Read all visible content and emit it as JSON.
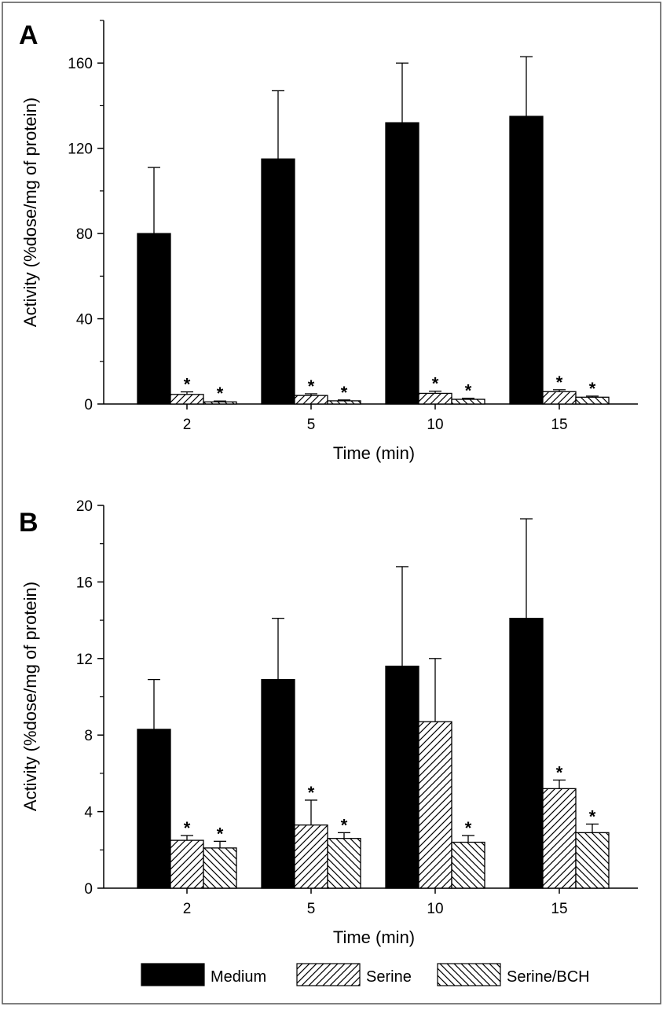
{
  "chart_data": [
    {
      "type": "bar",
      "panel_label": "A",
      "categories": [
        "2",
        "5",
        "10",
        "15"
      ],
      "xlabel": "Time (min)",
      "ylabel": "Activity (%dose/mg of protein)",
      "ylim": [
        0,
        180
      ],
      "yticks": [
        0,
        40,
        80,
        120,
        160
      ],
      "series": [
        {
          "name": "Medium",
          "values": [
            80,
            115,
            132,
            135
          ],
          "errors": [
            31,
            32,
            28,
            28
          ],
          "stars": [
            false,
            false,
            false,
            false
          ]
        },
        {
          "name": "Serine",
          "values": [
            4.5,
            4.0,
            5.0,
            5.8
          ],
          "errors": [
            1.2,
            0.8,
            1.0,
            0.9
          ],
          "stars": [
            true,
            true,
            true,
            true
          ]
        },
        {
          "name": "Serine/BCH",
          "values": [
            1.0,
            1.5,
            2.2,
            3.2
          ],
          "errors": [
            0.4,
            0.4,
            0.5,
            0.5
          ],
          "stars": [
            true,
            true,
            true,
            true
          ]
        }
      ]
    },
    {
      "type": "bar",
      "panel_label": "B",
      "categories": [
        "2",
        "5",
        "10",
        "15"
      ],
      "xlabel": "Time (min)",
      "ylabel": "Activity (%dose/mg of protein)",
      "ylim": [
        0,
        20
      ],
      "yticks": [
        0,
        4,
        8,
        12,
        16,
        20
      ],
      "series": [
        {
          "name": "Medium",
          "values": [
            8.3,
            10.9,
            11.6,
            14.1
          ],
          "errors": [
            2.6,
            3.2,
            5.2,
            5.2
          ],
          "stars": [
            false,
            false,
            false,
            false
          ]
        },
        {
          "name": "Serine",
          "values": [
            2.5,
            3.3,
            8.7,
            5.2
          ],
          "errors": [
            0.25,
            1.3,
            3.3,
            0.45
          ],
          "stars": [
            true,
            true,
            false,
            true
          ]
        },
        {
          "name": "Serine/BCH",
          "values": [
            2.1,
            2.6,
            2.4,
            2.9
          ],
          "errors": [
            0.35,
            0.3,
            0.35,
            0.45
          ],
          "stars": [
            true,
            true,
            true,
            true
          ]
        }
      ]
    }
  ],
  "legend": {
    "items": [
      {
        "label": "Medium",
        "fill": "solid"
      },
      {
        "label": "Serine",
        "fill": "hatch-forward"
      },
      {
        "label": "Serine/BCH",
        "fill": "hatch-back"
      }
    ]
  },
  "significance_marker": "*",
  "colors": {
    "bar_solid": "#000000",
    "background": "#ffffff",
    "frame": "#555555"
  }
}
